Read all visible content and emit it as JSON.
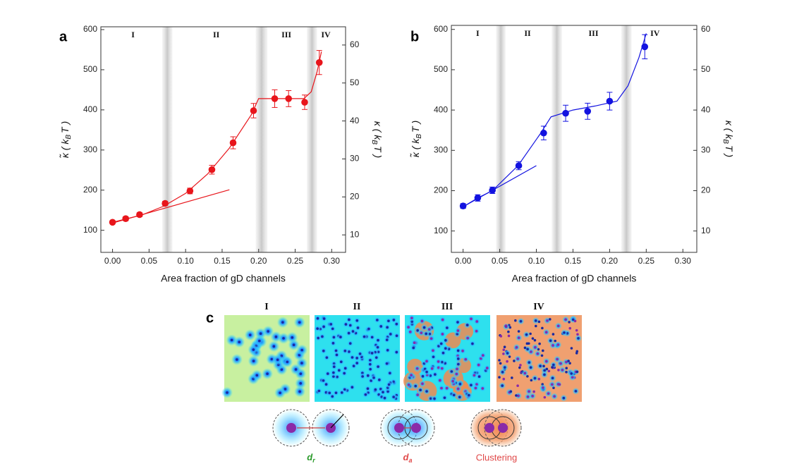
{
  "chart_data": [
    {
      "type": "scatter",
      "panel": "a",
      "xlabel": "Area fraction of gD channels",
      "ylabel": {
        "main": "κ̃ ( k",
        "sub": "B",
        "end": "T )"
      },
      "y2label": {
        "main": "κ ( k",
        "sub": "B",
        "end": "T )"
      },
      "xlim": [
        -0.016,
        0.319
      ],
      "ylim": [
        45,
        607
      ],
      "y2lim": [
        5.4,
        64.8
      ],
      "xticks": [
        {
          "value": 0,
          "label": "0.00"
        },
        {
          "value": 0.05,
          "label": "0.05"
        },
        {
          "value": 0.1,
          "label": "0.10"
        },
        {
          "value": 0.15,
          "label": "0.15"
        },
        {
          "value": 0.2,
          "label": "0.20"
        },
        {
          "value": 0.25,
          "label": "0.25"
        },
        {
          "value": 0.3,
          "label": "0.30"
        }
      ],
      "yticks": [
        100,
        200,
        300,
        400,
        500,
        600
      ],
      "y2ticks": [
        10,
        20,
        30,
        40,
        50,
        60
      ],
      "bands": [
        [
          0.068,
          0.082
        ],
        [
          0.196,
          0.212
        ],
        [
          0.266,
          0.28
        ]
      ],
      "regions": [
        {
          "label": "I",
          "x": 0.028
        },
        {
          "label": "II",
          "x": 0.142
        },
        {
          "label": "III",
          "x": 0.238
        },
        {
          "label": "IV",
          "x": 0.292
        }
      ],
      "color": "#e8151b",
      "series": [
        {
          "x": [
            0,
            0.018,
            0.037,
            0.072,
            0.106,
            0.136,
            0.165,
            0.193,
            0.222,
            0.241,
            0.263,
            0.283
          ],
          "values": [
            120,
            129,
            139,
            167,
            198,
            251,
            318,
            398,
            428,
            428,
            419,
            518
          ],
          "errors": [
            4,
            5,
            5,
            5,
            7,
            11,
            15,
            18,
            22,
            20,
            18,
            30
          ]
        }
      ],
      "fits": [
        {
          "x": [
            0,
            0.16
          ],
          "values": [
            118,
            201
          ]
        },
        {
          "x": [
            0,
            0.04,
            0.07,
            0.1,
            0.13,
            0.16,
            0.19,
            0.2,
            0.262,
            0.272,
            0.28,
            0.286
          ],
          "values": [
            120,
            138,
            160,
            192,
            240,
            305,
            388,
            428,
            428,
            445,
            495,
            545
          ]
        }
      ]
    },
    {
      "type": "scatter",
      "panel": "b",
      "xlabel": "Area fraction of gD channels",
      "ylabel": {
        "main": "κ̃ ( k",
        "sub": "B",
        "end": "T )"
      },
      "y2label": {
        "main": "κ ( k",
        "sub": "B",
        "end": "T )"
      },
      "xlim": [
        -0.016,
        0.319
      ],
      "ylim": [
        47,
        610
      ],
      "y2lim": [
        4.7,
        61
      ],
      "xticks": [
        {
          "value": 0,
          "label": "0.00"
        },
        {
          "value": 0.05,
          "label": "0.05"
        },
        {
          "value": 0.1,
          "label": "0.10"
        },
        {
          "value": 0.15,
          "label": "0.15"
        },
        {
          "value": 0.2,
          "label": "0.20"
        },
        {
          "value": 0.25,
          "label": "0.25"
        },
        {
          "value": 0.3,
          "label": "0.30"
        }
      ],
      "yticks": [
        100,
        200,
        300,
        400,
        500,
        600
      ],
      "y2ticks": [
        10,
        20,
        30,
        40,
        50,
        60
      ],
      "bands": [
        [
          0.045,
          0.058
        ],
        [
          0.121,
          0.135
        ],
        [
          0.216,
          0.23
        ]
      ],
      "regions": [
        {
          "label": "I",
          "x": 0.02
        },
        {
          "label": "II",
          "x": 0.088
        },
        {
          "label": "III",
          "x": 0.178
        },
        {
          "label": "IV",
          "x": 0.262
        }
      ],
      "color": "#1212e0",
      "series": [
        {
          "x": [
            0,
            0.02,
            0.04,
            0.076,
            0.11,
            0.14,
            0.17,
            0.2,
            0.248
          ],
          "values": [
            162,
            182,
            201,
            262,
            343,
            392,
            397,
            422,
            557
          ],
          "errors": [
            6,
            8,
            8,
            10,
            17,
            20,
            20,
            22,
            30
          ]
        }
      ],
      "fits": [
        {
          "x": [
            0,
            0.1
          ],
          "values": [
            160,
            262
          ]
        },
        {
          "x": [
            0,
            0.02,
            0.04,
            0.075,
            0.105,
            0.12,
            0.15,
            0.18,
            0.21,
            0.225,
            0.24,
            0.25
          ],
          "values": [
            160,
            182,
            200,
            262,
            340,
            383,
            400,
            410,
            422,
            460,
            530,
            590
          ]
        }
      ]
    }
  ],
  "panel_c": {
    "label": "c",
    "stages": [
      "I",
      "II",
      "III",
      "IV"
    ],
    "captions": [
      {
        "main": "d",
        "sub": "r"
      },
      {
        "main": "d",
        "sub": "a"
      },
      {
        "main": "Clustering"
      }
    ]
  }
}
